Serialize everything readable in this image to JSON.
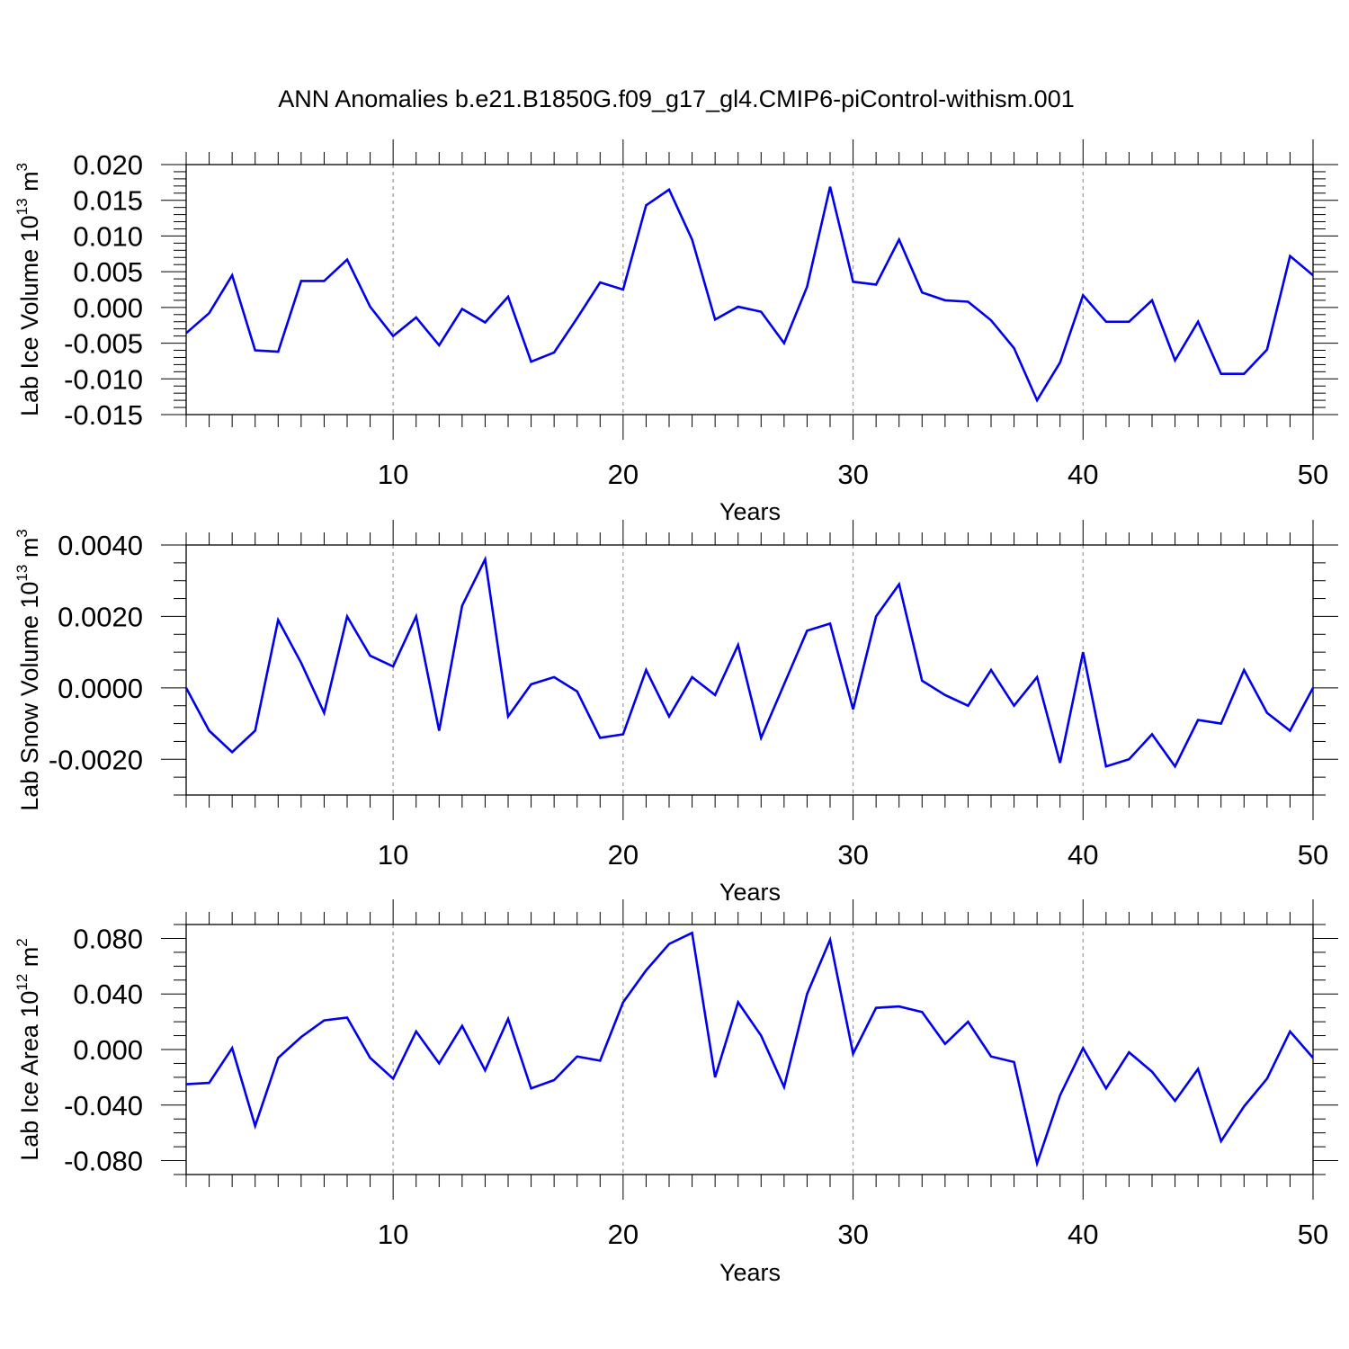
{
  "figure": {
    "title": "ANN Anomalies b.e21.B1850G.f09_g17_gl4.CMIP6-piControl-withism.001"
  },
  "chart_data": [
    {
      "type": "line",
      "ylabel_main": "Lab Ice Volume 10",
      "ylabel_exp": "13",
      "ylabel_unit": " m",
      "ylabel_unit_exp": "3",
      "xlabel": "Years",
      "xlim": [
        1,
        50
      ],
      "ylim": [
        -0.015,
        0.02
      ],
      "y_ticks": [
        -0.015,
        -0.01,
        -0.005,
        0.0,
        0.005,
        0.01,
        0.015,
        0.02
      ],
      "y_tick_labels": [
        "-0.015",
        "-0.010",
        "-0.005",
        "0.000",
        "0.005",
        "0.010",
        "0.015",
        "0.020"
      ],
      "y_minor_step": 0.001,
      "x_ticks": [
        10,
        20,
        30,
        40,
        50
      ],
      "x_tick_labels": [
        "10",
        "20",
        "30",
        "40",
        "50"
      ],
      "grid": "vertical dashed at major x ticks",
      "line_color": "#0000ee",
      "x": [
        1,
        2,
        3,
        4,
        5,
        6,
        7,
        8,
        9,
        10,
        11,
        12,
        13,
        14,
        15,
        16,
        17,
        18,
        19,
        20,
        21,
        22,
        23,
        24,
        25,
        26,
        27,
        28,
        29,
        30,
        31,
        32,
        33,
        34,
        35,
        36,
        37,
        38,
        39,
        40,
        41,
        42,
        43,
        44,
        45,
        46,
        47,
        48,
        49,
        50
      ],
      "values": [
        -0.0036,
        -0.0008,
        0.0045,
        -0.006,
        -0.0062,
        0.0037,
        0.0037,
        0.0067,
        0.0001,
        -0.004,
        -0.0014,
        -0.0053,
        -0.0002,
        -0.0021,
        0.0015,
        -0.0076,
        -0.0063,
        -0.0015,
        0.0035,
        0.0025,
        0.0143,
        0.0165,
        0.0095,
        -0.0017,
        0.0001,
        -0.0006,
        -0.005,
        0.0029,
        0.0169,
        0.0036,
        0.0032,
        0.0095,
        0.0021,
        0.001,
        0.0008,
        -0.0018,
        -0.0057,
        -0.013,
        -0.0077,
        0.0017,
        -0.002,
        -0.002,
        0.001,
        -0.0074,
        -0.002,
        -0.0093,
        -0.0093,
        -0.0059,
        0.0072,
        0.0045
      ]
    },
    {
      "type": "line",
      "ylabel_main": "Lab Snow Volume 10",
      "ylabel_exp": "13",
      "ylabel_unit": " m",
      "ylabel_unit_exp": "3",
      "xlabel": "Years",
      "xlim": [
        1,
        50
      ],
      "ylim": [
        -0.003,
        0.004
      ],
      "y_ticks": [
        -0.002,
        0.0,
        0.002,
        0.004
      ],
      "y_tick_labels": [
        "-0.0020",
        "0.0000",
        "0.0020",
        "0.0040"
      ],
      "y_minor_step": 0.0005,
      "x_ticks": [
        10,
        20,
        30,
        40,
        50
      ],
      "x_tick_labels": [
        "10",
        "20",
        "30",
        "40",
        "50"
      ],
      "grid": "vertical dashed at major x ticks",
      "line_color": "#0000ee",
      "x": [
        1,
        2,
        3,
        4,
        5,
        6,
        7,
        8,
        9,
        10,
        11,
        12,
        13,
        14,
        15,
        16,
        17,
        18,
        19,
        20,
        21,
        22,
        23,
        24,
        25,
        26,
        27,
        28,
        29,
        30,
        31,
        32,
        33,
        34,
        35,
        36,
        37,
        38,
        39,
        40,
        41,
        42,
        43,
        44,
        45,
        46,
        47,
        48,
        49,
        50
      ],
      "values": [
        0.0,
        -0.0012,
        -0.0018,
        -0.0012,
        0.0019,
        0.0007,
        -0.0007,
        0.002,
        0.0009,
        0.0006,
        0.002,
        -0.0012,
        0.0023,
        0.0036,
        -0.0008,
        0.0001,
        0.0003,
        -0.0001,
        -0.0014,
        -0.0013,
        0.0005,
        -0.0008,
        0.0003,
        -0.0002,
        0.0012,
        -0.0014,
        0.0001,
        0.0016,
        0.0018,
        -0.0006,
        0.002,
        0.0029,
        0.0002,
        -0.0002,
        -0.0005,
        0.0005,
        -0.0005,
        0.0003,
        -0.0021,
        0.001,
        -0.0022,
        -0.002,
        -0.0013,
        -0.0022,
        -0.0009,
        -0.001,
        0.0005,
        -0.0007,
        -0.0012,
        0.0
      ]
    },
    {
      "type": "line",
      "ylabel_main": "Lab Ice Area 10",
      "ylabel_exp": "12",
      "ylabel_unit": " m",
      "ylabel_unit_exp": "2",
      "xlabel": "Years",
      "xlim": [
        1,
        50
      ],
      "ylim": [
        -0.09,
        0.09
      ],
      "y_ticks": [
        -0.08,
        -0.04,
        0.0,
        0.04,
        0.08
      ],
      "y_tick_labels": [
        "-0.080",
        "-0.040",
        "0.000",
        "0.040",
        "0.080"
      ],
      "y_minor_step": 0.01,
      "x_ticks": [
        10,
        20,
        30,
        40,
        50
      ],
      "x_tick_labels": [
        "10",
        "20",
        "30",
        "40",
        "50"
      ],
      "grid": "vertical dashed at major x ticks",
      "line_color": "#0000ee",
      "x": [
        1,
        2,
        3,
        4,
        5,
        6,
        7,
        8,
        9,
        10,
        11,
        12,
        13,
        14,
        15,
        16,
        17,
        18,
        19,
        20,
        21,
        22,
        23,
        24,
        25,
        26,
        27,
        28,
        29,
        30,
        31,
        32,
        33,
        34,
        35,
        36,
        37,
        38,
        39,
        40,
        41,
        42,
        43,
        44,
        45,
        46,
        47,
        48,
        49,
        50
      ],
      "values": [
        -0.025,
        -0.024,
        0.001,
        -0.055,
        -0.006,
        0.009,
        0.021,
        0.023,
        -0.006,
        -0.021,
        0.013,
        -0.01,
        0.017,
        -0.015,
        0.022,
        -0.028,
        -0.022,
        -0.005,
        -0.008,
        0.034,
        0.057,
        0.076,
        0.084,
        -0.02,
        0.034,
        0.01,
        -0.027,
        0.04,
        0.079,
        -0.003,
        0.03,
        0.031,
        0.027,
        0.004,
        0.02,
        -0.005,
        -0.009,
        -0.082,
        -0.033,
        0.001,
        -0.028,
        -0.002,
        -0.016,
        -0.037,
        -0.014,
        -0.066,
        -0.041,
        -0.021,
        0.013,
        -0.006
      ]
    }
  ]
}
